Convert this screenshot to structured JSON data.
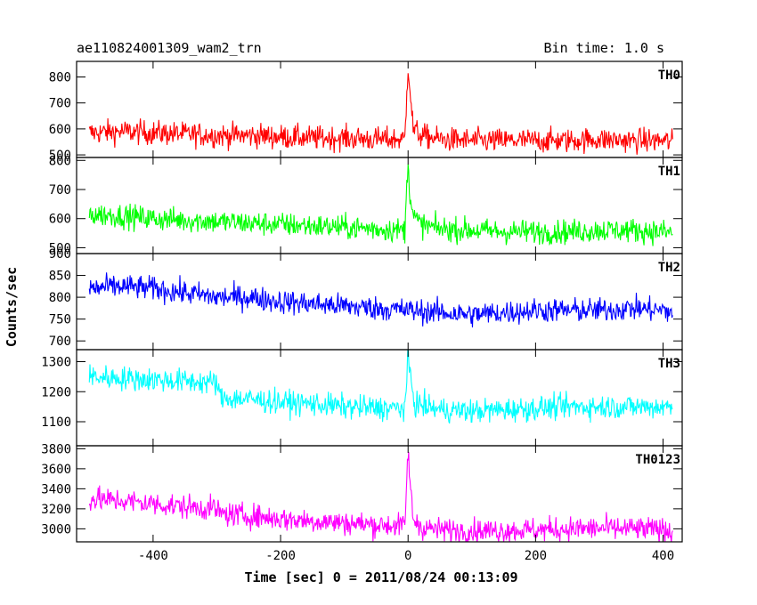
{
  "header": {
    "title": "ae110824001309_wam2_trn",
    "bin_time": "Bin time: 1.0 s"
  },
  "chart_data": {
    "type": "line",
    "xlabel": "Time [sec] 0 = 2011/08/24 00:13:09",
    "ylabel": "Counts/sec",
    "xlim": [
      -520,
      430
    ],
    "xticks": [
      -400,
      -200,
      0,
      200,
      400
    ],
    "x_range_data": [
      -500,
      415
    ],
    "grid": false,
    "panels": [
      {
        "name": "TH0",
        "color": "#ff0000",
        "ylim": [
          490,
          860
        ],
        "yticks": [
          500,
          600,
          700,
          800
        ],
        "series": [
          {
            "x": [
              -500,
              -450,
              -400,
              -350,
              -300,
              -250,
              -200,
              -150,
              -100,
              -50,
              -5,
              0,
              3,
              8,
              20,
              50,
              100,
              150,
              200,
              250,
              300,
              350,
              400,
              415
            ],
            "y": [
              585,
              590,
              585,
              580,
              575,
              575,
              570,
              565,
              565,
              560,
              560,
              850,
              760,
              600,
              575,
              560,
              555,
              555,
              555,
              555,
              560,
              555,
              555,
              550
            ]
          }
        ]
      },
      {
        "name": "TH1",
        "color": "#00ff00",
        "ylim": [
          480,
          810
        ],
        "yticks": [
          500,
          600,
          700,
          800
        ],
        "series": [
          {
            "x": [
              -500,
              -450,
              -400,
              -350,
              -300,
              -250,
              -200,
              -150,
              -100,
              -50,
              -5,
              0,
              3,
              8,
              20,
              50,
              100,
              150,
              200,
              250,
              300,
              350,
              400,
              415
            ],
            "y": [
              615,
              610,
              600,
              595,
              590,
              585,
              580,
              575,
              570,
              565,
              560,
              800,
              690,
              610,
              580,
              565,
              560,
              555,
              555,
              555,
              560,
              560,
              555,
              550
            ]
          }
        ]
      },
      {
        "name": "TH2",
        "color": "#0000ff",
        "ylim": [
          680,
          900
        ],
        "yticks": [
          700,
          750,
          800,
          850,
          900
        ],
        "series": [
          {
            "x": [
              -500,
              -450,
              -400,
              -350,
              -300,
              -250,
              -200,
              -150,
              -100,
              -50,
              0,
              50,
              100,
              150,
              200,
              250,
              300,
              350,
              400,
              415
            ],
            "y": [
              820,
              825,
              820,
              810,
              800,
              800,
              790,
              785,
              780,
              775,
              770,
              765,
              760,
              765,
              770,
              770,
              770,
              775,
              770,
              765
            ]
          }
        ]
      },
      {
        "name": "TH3",
        "color": "#00ffff",
        "ylim": [
          1020,
          1340
        ],
        "yticks": [
          1100,
          1200,
          1300
        ],
        "series": [
          {
            "x": [
              -500,
              -450,
              -400,
              -350,
              -300,
              -295,
              -250,
              -200,
              -150,
              -100,
              -50,
              -5,
              0,
              10,
              50,
              100,
              150,
              200,
              250,
              300,
              350,
              400,
              415
            ],
            "y": [
              1250,
              1245,
              1240,
              1235,
              1230,
              1180,
              1175,
              1165,
              1160,
              1150,
              1145,
              1145,
              1310,
              1160,
              1140,
              1135,
              1140,
              1145,
              1150,
              1150,
              1150,
              1150,
              1150
            ]
          }
        ]
      },
      {
        "name": "TH0123",
        "color": "#ff00ff",
        "ylim": [
          2870,
          3830
        ],
        "yticks": [
          3000,
          3200,
          3400,
          3600,
          3800
        ],
        "series": [
          {
            "x": [
              -500,
              -450,
              -400,
              -350,
              -300,
              -295,
              -250,
              -200,
              -150,
              -100,
              -50,
              -5,
              0,
              3,
              8,
              20,
              50,
              100,
              150,
              200,
              250,
              300,
              350,
              400,
              415
            ],
            "y": [
              3300,
              3280,
              3250,
              3220,
              3200,
              3150,
              3130,
              3100,
              3080,
              3060,
              3040,
              3030,
              3800,
              3450,
              3100,
              3020,
              2990,
              2980,
              2985,
              2990,
              3000,
              3005,
              3000,
              2990,
              2980
            ]
          }
        ]
      }
    ]
  }
}
